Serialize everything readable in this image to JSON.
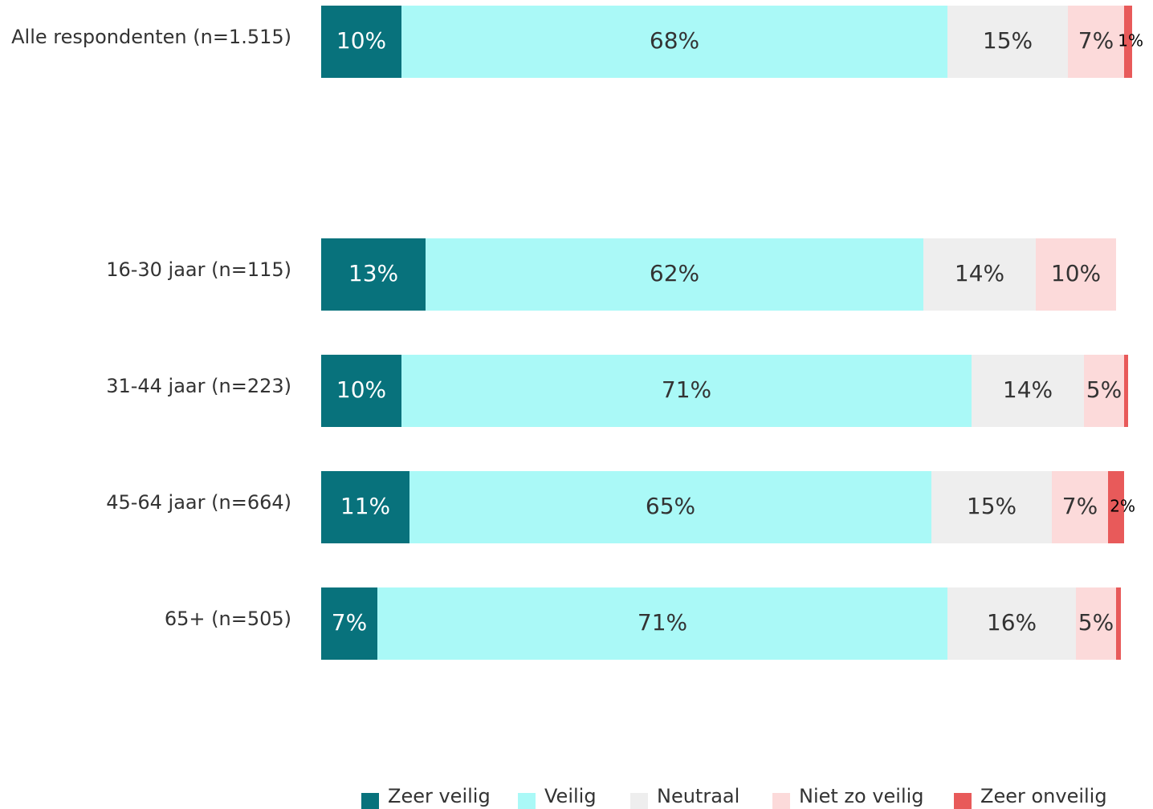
{
  "chart_data": {
    "type": "stacked_barh",
    "categories": [
      "Alle respondenten (n=1.515)",
      "16-30 jaar (n=115)",
      "31-44 jaar (n=223)",
      "45-64 jaar (n=664)",
      "65+ (n=505)"
    ],
    "xlim": [
      0,
      100
    ],
    "legend": "bottom",
    "series": [
      {
        "name": "Zeer veilig",
        "color": "#08727c",
        "values": [
          10,
          13,
          10,
          11,
          7
        ],
        "value_labels": [
          "10%",
          "13%",
          "10%",
          "11%",
          "7%"
        ]
      },
      {
        "name": "Veilig",
        "color": "#aaf9f7",
        "values": [
          68,
          62,
          71,
          65,
          71
        ],
        "value_labels": [
          "68%",
          "62%",
          "71%",
          "65%",
          "71%"
        ]
      },
      {
        "name": "Neutraal",
        "color": "#eeeeee",
        "values": [
          15,
          14,
          14,
          15,
          16
        ],
        "value_labels": [
          "15%",
          "14%",
          "14%",
          "15%",
          "16%"
        ]
      },
      {
        "name": "Niet zo veilig",
        "color": "#fcdada",
        "values": [
          7,
          10,
          5,
          7,
          5
        ],
        "value_labels": [
          "7%",
          "10%",
          "5%",
          "7%",
          "5%"
        ]
      },
      {
        "name": "Zeer onveilig",
        "color": "#e85a5a",
        "values": [
          1,
          null,
          0.5,
          2,
          0.6
        ],
        "value_labels": [
          "1%",
          null,
          null,
          "2%",
          null
        ]
      }
    ]
  }
}
